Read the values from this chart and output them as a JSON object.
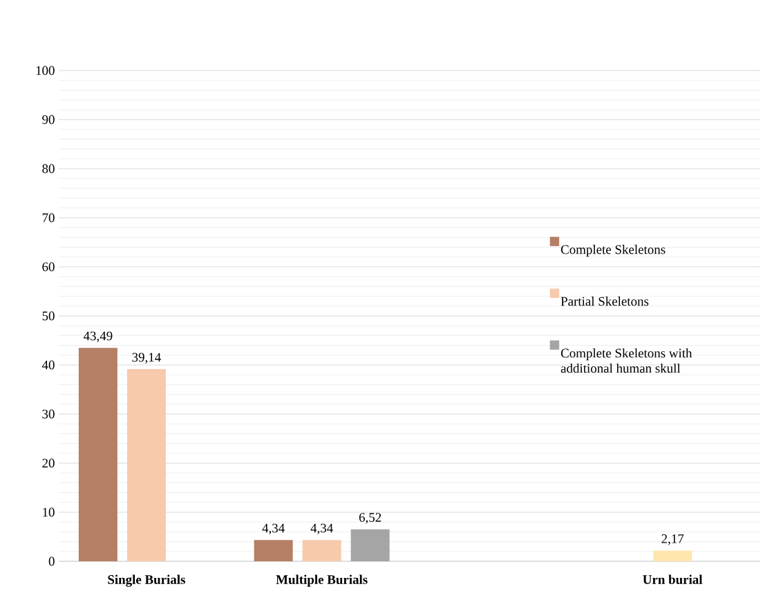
{
  "chart_data": {
    "type": "bar",
    "categories": [
      "Single Burials",
      "Multiple Burials",
      null,
      "Urn burial"
    ],
    "series": [
      {
        "name": "Complete Skeletons",
        "color": "#b57f65",
        "values": [
          43.49,
          4.34,
          null,
          null
        ],
        "value_labels": [
          "43,49",
          "4,34",
          null,
          null
        ]
      },
      {
        "name": "Partial Skeletons",
        "color": "#f7caac",
        "colors": [
          "#f7caac",
          "#f7caac",
          null,
          "#fee7ad"
        ],
        "values": [
          39.14,
          4.34,
          null,
          2.17
        ],
        "value_labels": [
          "39,14",
          "4,34",
          null,
          "2,17"
        ]
      },
      {
        "name": "Complete Skeletons with additional human skull",
        "color": "#a5a5a5",
        "values": [
          null,
          6.52,
          null,
          null
        ],
        "value_labels": [
          null,
          "6,52",
          null,
          null
        ]
      }
    ],
    "ylim": [
      0,
      100
    ],
    "yticks": [
      0,
      10,
      20,
      30,
      40,
      50,
      60,
      70,
      80,
      90,
      100
    ],
    "grid": "y",
    "legend": "right"
  }
}
